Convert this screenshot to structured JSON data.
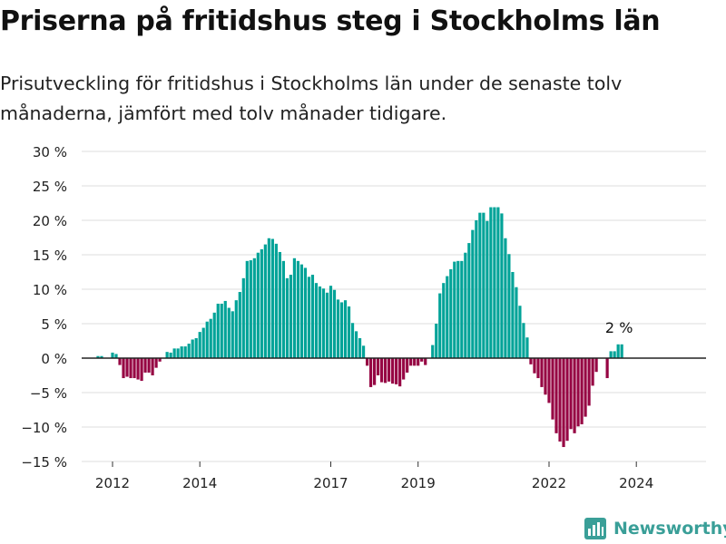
{
  "title": "Priserna på fritidshus steg i Stockholms län",
  "subtitle": "Prisutveckling för fritidshus i Stockholms län under de senaste tolv månaderna, jämfört med tolv månader tidigare.",
  "brand": {
    "name": "Newsworthy",
    "icon": "newsworthy-logo-icon"
  },
  "colors": {
    "positive": "#00a398",
    "negative": "#960543",
    "grid": "#dddddd",
    "zero_line": "#222222",
    "text": "#222222"
  },
  "chart_data": {
    "type": "bar",
    "x_start": "2011-09",
    "x_interval": "month",
    "ylim": [
      -15,
      30
    ],
    "yticks": [
      -15,
      -10,
      -5,
      0,
      5,
      10,
      15,
      20,
      25,
      30
    ],
    "ytick_labels": [
      "−15 %",
      "−10 %",
      "−5 %",
      "0 %",
      "5 %",
      "10 %",
      "15 %",
      "20 %",
      "25 %",
      "30 %"
    ],
    "xticks": [
      "2012-01",
      "2014-01",
      "2017-01",
      "2019-01",
      "2022-01",
      "2024-01"
    ],
    "xtick_labels": [
      "2012",
      "2014",
      "2017",
      "2019",
      "2022",
      "2024"
    ],
    "grid": true,
    "values": [
      0.3,
      0.3,
      0,
      0,
      0.8,
      0.6,
      -1,
      -2.9,
      -2.7,
      -2.9,
      -2.9,
      -3.1,
      -3.3,
      -2.1,
      -2.1,
      -2.5,
      -1.4,
      -0.5,
      0,
      0.9,
      0.8,
      1.4,
      1.4,
      1.7,
      1.7,
      2.1,
      2.7,
      2.9,
      3.8,
      4.4,
      5.3,
      5.7,
      6.6,
      7.9,
      7.9,
      8.3,
      7.3,
      6.8,
      8.4,
      9.6,
      11.6,
      14.1,
      14.2,
      14.5,
      15.3,
      15.8,
      16.5,
      17.4,
      17.3,
      16.6,
      15.4,
      14.1,
      11.6,
      12.1,
      14.5,
      14.1,
      13.6,
      13.1,
      11.8,
      12.1,
      10.9,
      10.4,
      10.1,
      9.5,
      10.5,
      9.9,
      8.5,
      8.1,
      8.4,
      7.5,
      5.1,
      3.9,
      2.9,
      1.8,
      -1.1,
      -4.2,
      -3.9,
      -2.5,
      -3.5,
      -3.6,
      -3.4,
      -3.7,
      -3.8,
      -4.1,
      -3.1,
      -2.1,
      -1.1,
      -1.1,
      -1.1,
      -0.5,
      -1,
      0,
      1.9,
      5,
      9.4,
      10.9,
      11.9,
      12.9,
      14,
      14.1,
      14.1,
      15.3,
      16.7,
      18.6,
      20,
      21.1,
      21.1,
      19.9,
      21.9,
      21.9,
      21.9,
      21,
      17.4,
      15.1,
      12.5,
      10.3,
      7.6,
      5.1,
      3,
      -0.9,
      -2.2,
      -2.9,
      -4.2,
      -5.3,
      -6.5,
      -8.9,
      -10.9,
      -12.1,
      -12.9,
      -12,
      -10.3,
      -10.9,
      -9.9,
      -9.6,
      -8.5,
      -6.9,
      -4,
      -2,
      0,
      0,
      -2.9,
      1,
      1,
      2,
      2
    ],
    "annotation": {
      "label": "2 %",
      "value": 2,
      "at": "last"
    }
  }
}
